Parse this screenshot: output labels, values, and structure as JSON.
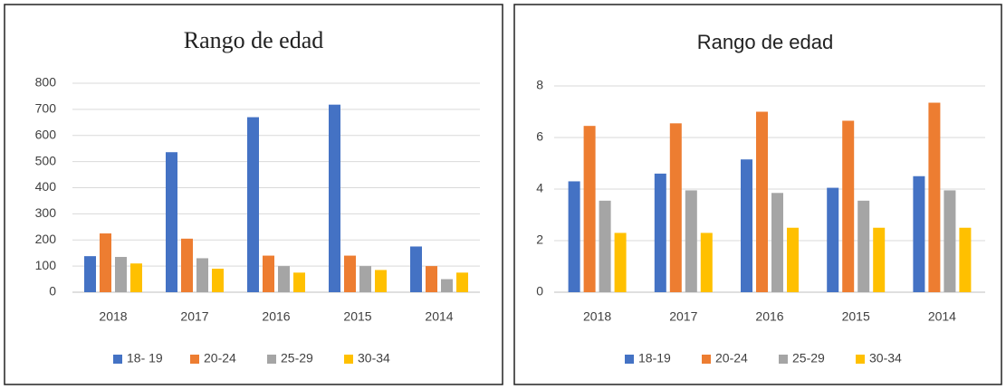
{
  "chart_data": [
    {
      "type": "bar",
      "title": "Rango de edad",
      "categories": [
        "2018",
        "2017",
        "2016",
        "2015",
        "2014"
      ],
      "series": [
        {
          "name": "18- 19",
          "color": "#4472c4",
          "values": [
            138,
            536,
            670,
            718,
            175
          ]
        },
        {
          "name": "20-24",
          "color": "#ed7d31",
          "values": [
            225,
            205,
            140,
            140,
            100
          ]
        },
        {
          "name": "25-29",
          "color": "#a5a5a5",
          "values": [
            135,
            130,
            100,
            100,
            50
          ]
        },
        {
          "name": "30-34",
          "color": "#ffc000",
          "values": [
            110,
            90,
            75,
            85,
            75
          ]
        }
      ],
      "ylim": [
        0,
        800
      ],
      "yticks": [
        0,
        100,
        200,
        300,
        400,
        500,
        600,
        700,
        800
      ],
      "grid": true,
      "legend": "bottom"
    },
    {
      "type": "bar",
      "title": "Rango de edad",
      "categories": [
        "2018",
        "2017",
        "2016",
        "2015",
        "2014"
      ],
      "series": [
        {
          "name": "18-19",
          "color": "#4472c4",
          "values": [
            4.3,
            4.6,
            5.15,
            4.05,
            4.5
          ]
        },
        {
          "name": "20-24",
          "color": "#ed7d31",
          "values": [
            6.45,
            6.55,
            7.0,
            6.65,
            7.35
          ]
        },
        {
          "name": "25-29",
          "color": "#a5a5a5",
          "values": [
            3.55,
            3.95,
            3.85,
            3.55,
            3.95
          ]
        },
        {
          "name": "30-34",
          "color": "#ffc000",
          "values": [
            2.3,
            2.3,
            2.5,
            2.5,
            2.5
          ]
        }
      ],
      "ylim": [
        0,
        8
      ],
      "yticks": [
        0,
        2,
        4,
        6,
        8
      ],
      "grid": true,
      "legend": "bottom"
    }
  ]
}
